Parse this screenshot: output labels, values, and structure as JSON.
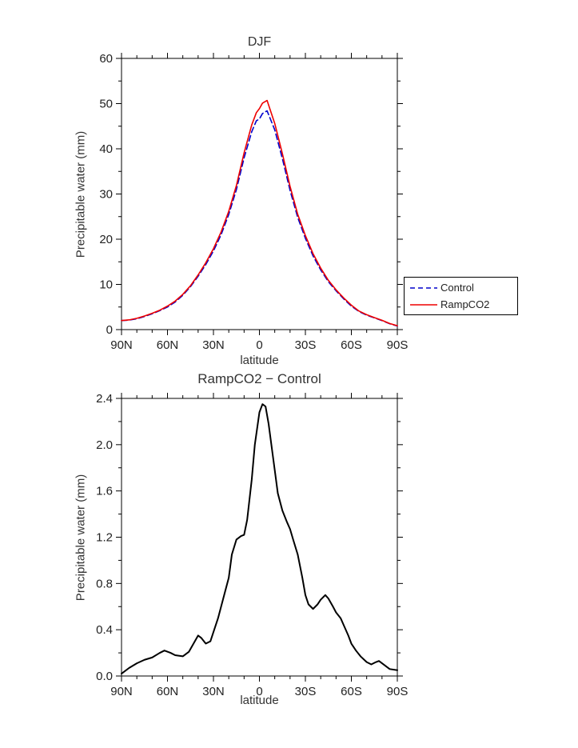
{
  "figure": {
    "background": "#ffffff"
  },
  "chart_data": [
    {
      "type": "line",
      "title": "DJF",
      "xlabel": "latitude",
      "ylabel": "Precipitable water (mm)",
      "xlim": [
        90,
        -90
      ],
      "ylim": [
        0,
        60
      ],
      "grid": false,
      "legend_position": "outside-right",
      "xticks": {
        "values": [
          90,
          60,
          30,
          0,
          -30,
          -60,
          -90
        ],
        "labels": [
          "90N",
          "60N",
          "30N",
          "0",
          "30S",
          "60S",
          "90S"
        ],
        "minor_step": 10
      },
      "yticks": {
        "values": [
          0,
          10,
          20,
          30,
          40,
          50,
          60
        ],
        "labels": [
          "0",
          "10",
          "20",
          "30",
          "40",
          "50",
          "60"
        ],
        "minor_step": 5
      },
      "x": [
        90,
        85,
        80,
        75,
        70,
        65,
        60,
        55,
        50,
        45,
        40,
        35,
        30,
        25,
        20,
        15,
        10,
        5,
        2,
        0,
        -2,
        -5,
        -10,
        -15,
        -20,
        -25,
        -30,
        -35,
        -40,
        -45,
        -50,
        -55,
        -60,
        -65,
        -70,
        -75,
        -80,
        -85,
        -90
      ],
      "series": [
        {
          "name": "Control",
          "color": "#0000cc",
          "line_style": "dashed",
          "dash": "7 4",
          "width": 1.6,
          "values": [
            2.0,
            2.1,
            2.4,
            2.9,
            3.5,
            4.2,
            5.0,
            6.1,
            7.6,
            9.5,
            11.8,
            14.4,
            17.4,
            21.0,
            25.5,
            31.0,
            38.0,
            43.8,
            46.2,
            46.6,
            47.8,
            48.4,
            44.2,
            37.8,
            30.8,
            24.8,
            20.2,
            16.3,
            13.2,
            10.6,
            8.6,
            6.8,
            5.2,
            4.0,
            3.2,
            2.6,
            2.0,
            1.3,
            0.8
          ]
        },
        {
          "name": "RampCO2",
          "color": "#ee0000",
          "line_style": "solid",
          "dash": "",
          "width": 1.6,
          "values": [
            2.0,
            2.15,
            2.5,
            3.0,
            3.6,
            4.3,
            5.2,
            6.3,
            7.8,
            9.7,
            12.1,
            14.8,
            17.9,
            21.6,
            26.2,
            31.9,
            39.1,
            45.3,
            48.0,
            48.9,
            50.1,
            50.7,
            45.6,
            38.9,
            31.7,
            25.5,
            20.8,
            16.8,
            13.6,
            10.9,
            8.8,
            7.0,
            5.4,
            4.1,
            3.3,
            2.65,
            2.05,
            1.35,
            0.85
          ]
        }
      ]
    },
    {
      "type": "line",
      "title": "RampCO2 − Control",
      "xlabel": "latitude",
      "ylabel": "Precipitable water (mm)",
      "xlim": [
        90,
        -90
      ],
      "ylim": [
        0,
        2.4
      ],
      "grid": false,
      "legend_position": "none",
      "xticks": {
        "values": [
          90,
          60,
          30,
          0,
          -30,
          -60,
          -90
        ],
        "labels": [
          "90N",
          "60N",
          "30N",
          "0",
          "30S",
          "60S",
          "90S"
        ],
        "minor_step": 10
      },
      "yticks": {
        "values": [
          0,
          0.4,
          0.8,
          1.2,
          1.6,
          2.0,
          2.4
        ],
        "labels": [
          "0.0",
          "0.4",
          "0.8",
          "1.2",
          "1.6",
          "2.0",
          "2.4"
        ],
        "minor_step": 0.2
      },
      "x": [
        90,
        85,
        80,
        75,
        70,
        65,
        62,
        58,
        55,
        50,
        46,
        43,
        40,
        38,
        35,
        32,
        30,
        27,
        25,
        22,
        20,
        18,
        15,
        12,
        10,
        8,
        5,
        3,
        0,
        -2,
        -4,
        -6,
        -8,
        -10,
        -12,
        -15,
        -18,
        -20,
        -22,
        -25,
        -28,
        -30,
        -32,
        -35,
        -38,
        -40,
        -43,
        -45,
        -48,
        -50,
        -53,
        -55,
        -58,
        -60,
        -63,
        -66,
        -70,
        -73,
        -76,
        -78,
        -80,
        -85,
        -90
      ],
      "series": [
        {
          "name": "RampCO2 − Control",
          "color": "#000000",
          "line_style": "solid",
          "dash": "",
          "width": 2,
          "values": [
            0.02,
            0.07,
            0.11,
            0.14,
            0.16,
            0.2,
            0.22,
            0.2,
            0.18,
            0.17,
            0.21,
            0.28,
            0.35,
            0.33,
            0.28,
            0.3,
            0.38,
            0.5,
            0.6,
            0.75,
            0.85,
            1.05,
            1.18,
            1.21,
            1.22,
            1.35,
            1.7,
            2.0,
            2.28,
            2.35,
            2.33,
            2.18,
            1.98,
            1.78,
            1.58,
            1.43,
            1.33,
            1.27,
            1.18,
            1.05,
            0.85,
            0.7,
            0.62,
            0.58,
            0.62,
            0.66,
            0.7,
            0.67,
            0.6,
            0.55,
            0.5,
            0.44,
            0.35,
            0.28,
            0.22,
            0.17,
            0.12,
            0.1,
            0.12,
            0.13,
            0.11,
            0.06,
            0.05
          ]
        }
      ]
    }
  ]
}
